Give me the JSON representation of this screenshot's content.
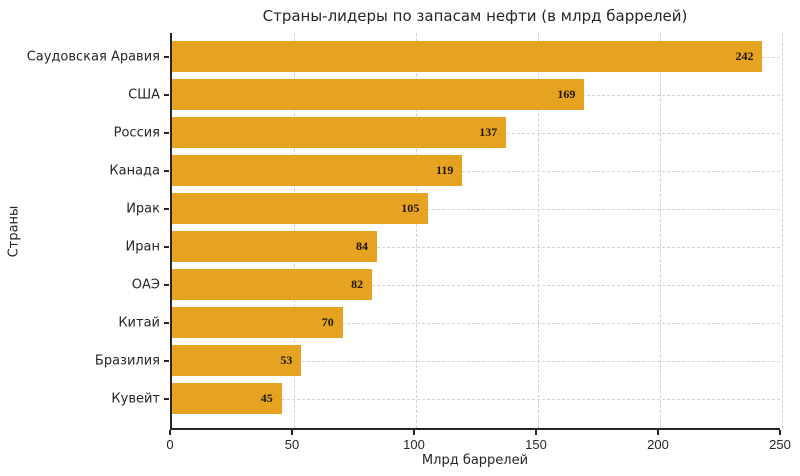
{
  "chart_data": {
    "type": "bar",
    "orientation": "horizontal",
    "title": "Страны-лидеры по запасам нефти (в млрд баррелей)",
    "xlabel": "Млрд баррелей",
    "ylabel": "Страны",
    "categories": [
      "Саудовская Аравия",
      "США",
      "Россия",
      "Канада",
      "Ирак",
      "Иран",
      "ОАЭ",
      "Китай",
      "Бразилия",
      "Кувейт"
    ],
    "values": [
      242,
      169,
      137,
      119,
      105,
      84,
      82,
      70,
      53,
      45
    ],
    "xlim": [
      0,
      250
    ],
    "xticks": [
      0,
      50,
      100,
      150,
      200,
      250
    ],
    "grid": true,
    "legend": "none",
    "bar_color": "#E6A221",
    "grid_color": "#d0d0d0",
    "axis_color": "#262626",
    "value_label_color": "#1f1505"
  }
}
